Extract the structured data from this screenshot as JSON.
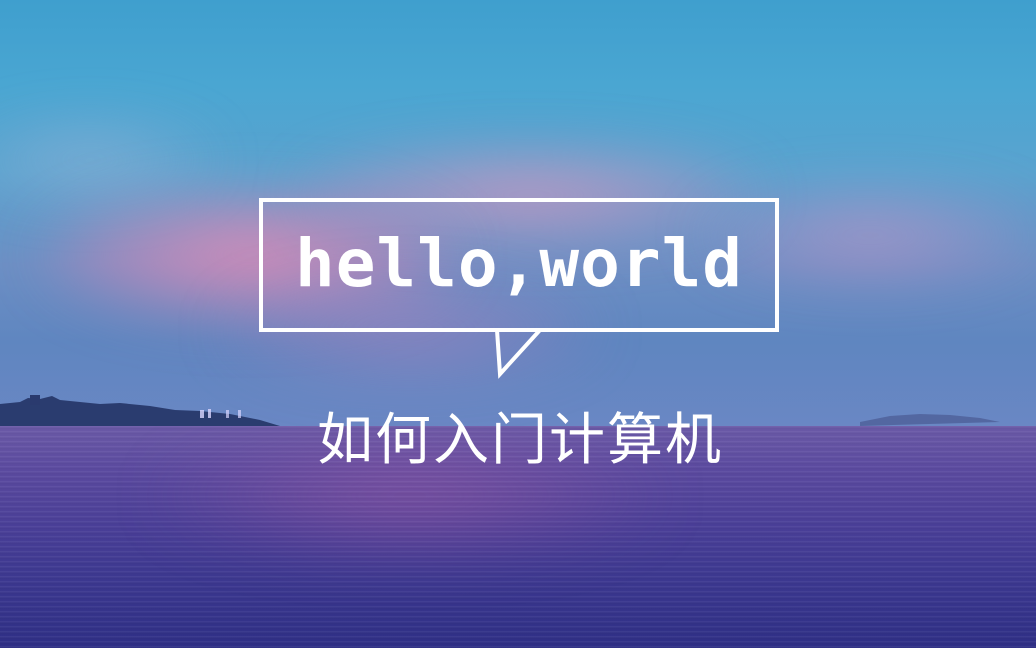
{
  "image": {
    "bubble_text": "hello,world",
    "caption": "如何入门计算机",
    "colors": {
      "sky_top": "#3f9fce",
      "cloud_pink": "#f08cb4",
      "sea": "#4a3f98",
      "text": "#ffffff"
    }
  }
}
